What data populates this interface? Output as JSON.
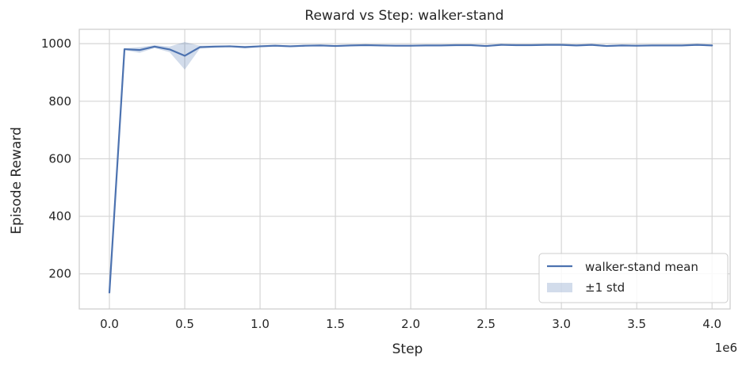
{
  "chart_data": {
    "type": "line",
    "title": "Reward vs Step: walker-stand",
    "xlabel": "Step",
    "ylabel": "Episode Reward",
    "x_offset_label": "1e6",
    "xlim": [
      -0.2,
      4.12
    ],
    "ylim": [
      78,
      1050
    ],
    "x_ticks": [
      0.0,
      0.5,
      1.0,
      1.5,
      2.0,
      2.5,
      3.0,
      3.5,
      4.0
    ],
    "x_tick_labels": [
      "0.0",
      "0.5",
      "1.0",
      "1.5",
      "2.0",
      "2.5",
      "3.0",
      "3.5",
      "4.0"
    ],
    "y_ticks": [
      200,
      400,
      600,
      800,
      1000
    ],
    "y_tick_labels": [
      "200",
      "400",
      "600",
      "800",
      "1000"
    ],
    "grid": true,
    "legend_position": "lower-right",
    "colors": {
      "line": "#4c72b0",
      "band": "#4c72b0",
      "grid": "#d5d5d5",
      "frame": "#cccccc"
    },
    "series": [
      {
        "name": "walker-stand mean",
        "x": [
          0.0,
          0.1,
          0.2,
          0.3,
          0.4,
          0.5,
          0.6,
          0.7,
          0.8,
          0.9,
          1.0,
          1.1,
          1.2,
          1.3,
          1.4,
          1.5,
          1.6,
          1.7,
          1.8,
          1.9,
          2.0,
          2.1,
          2.2,
          2.3,
          2.4,
          2.5,
          2.6,
          2.7,
          2.8,
          2.9,
          3.0,
          3.1,
          3.2,
          3.3,
          3.4,
          3.5,
          3.6,
          3.7,
          3.8,
          3.9,
          4.0
        ],
        "y": [
          135,
          981,
          978,
          990,
          980,
          958,
          988,
          990,
          991,
          988,
          991,
          993,
          991,
          993,
          994,
          992,
          994,
          995,
          994,
          993,
          993,
          994,
          994,
          995,
          995,
          992,
          996,
          995,
          995,
          996,
          996,
          994,
          996,
          992,
          994,
          993,
          994,
          994,
          994,
          996,
          994
        ],
        "std": [
          0,
          3,
          10,
          5,
          10,
          48,
          5,
          4,
          3,
          4,
          3,
          3,
          3,
          3,
          2,
          3,
          2,
          2,
          2,
          3,
          3,
          2,
          2,
          2,
          2,
          3,
          2,
          2,
          2,
          2,
          2,
          3,
          2,
          3,
          3,
          3,
          2,
          2,
          2,
          2,
          2
        ]
      }
    ],
    "band_label": "±1 std"
  }
}
